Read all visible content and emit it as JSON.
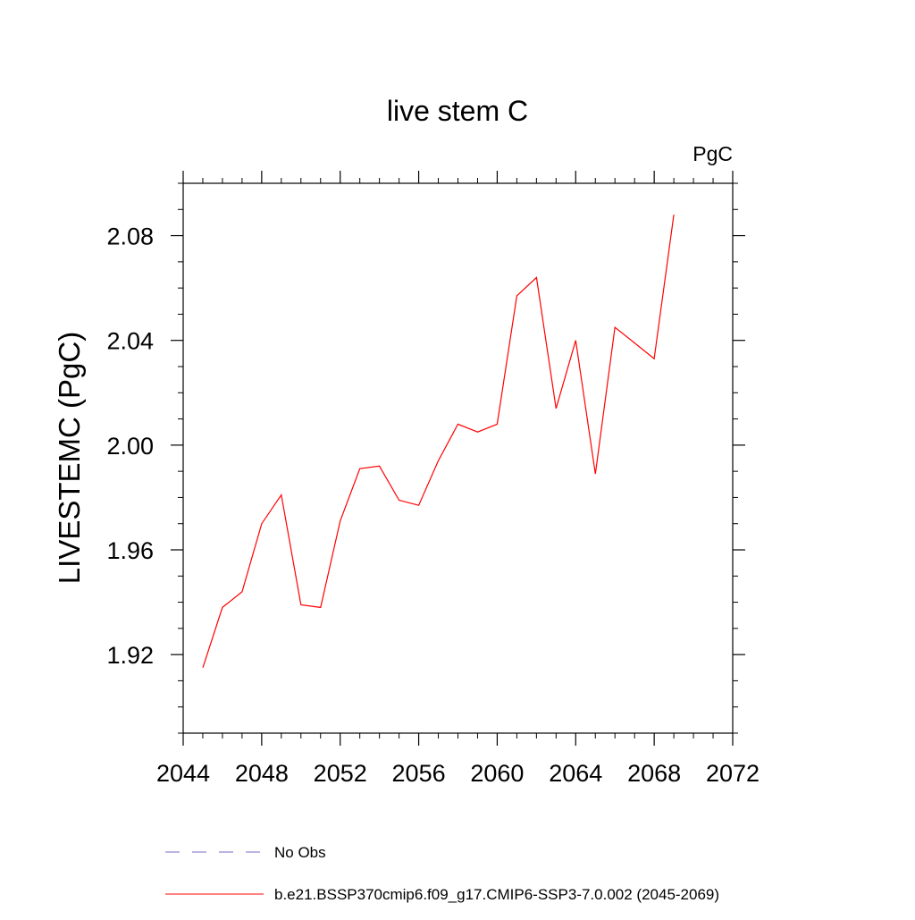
{
  "chart_data": {
    "type": "line",
    "title": "live stem C",
    "units_label": "PgC",
    "ylabel": "LIVESTEMC  (PgC)",
    "xlabel": "",
    "xlim": [
      2044,
      2072
    ],
    "ylim": [
      1.89,
      2.1
    ],
    "x_ticks": [
      "2044",
      "2048",
      "2052",
      "2056",
      "2060",
      "2064",
      "2068",
      "2072"
    ],
    "y_ticks": [
      "1.92",
      "1.96",
      "2.00",
      "2.04",
      "2.08"
    ],
    "grid": false,
    "legend_position": "bottom",
    "legend": [
      {
        "label": "No Obs",
        "color": "#7b68c8",
        "style": "dashed"
      },
      {
        "label": "b.e21.BSSP370cmip6.f09_g17.CMIP6-SSP3-7.0.002 (2045-2069)",
        "color": "#ff0000",
        "style": "solid"
      }
    ],
    "series": [
      {
        "name": "b.e21.BSSP370cmip6.f09_g17.CMIP6-SSP3-7.0.002 (2045-2069)",
        "color": "#ff0000",
        "x": [
          2045,
          2046,
          2047,
          2048,
          2049,
          2050,
          2051,
          2052,
          2053,
          2054,
          2055,
          2056,
          2057,
          2058,
          2059,
          2060,
          2061,
          2062,
          2063,
          2064,
          2065,
          2066,
          2067,
          2068,
          2069
        ],
        "y": [
          1.915,
          1.938,
          1.944,
          1.97,
          1.981,
          1.939,
          1.938,
          1.971,
          1.991,
          1.992,
          1.979,
          1.977,
          1.994,
          2.008,
          2.005,
          2.008,
          2.057,
          2.064,
          2.014,
          2.04,
          1.989,
          2.045,
          2.039,
          2.033,
          2.088
        ]
      }
    ]
  }
}
